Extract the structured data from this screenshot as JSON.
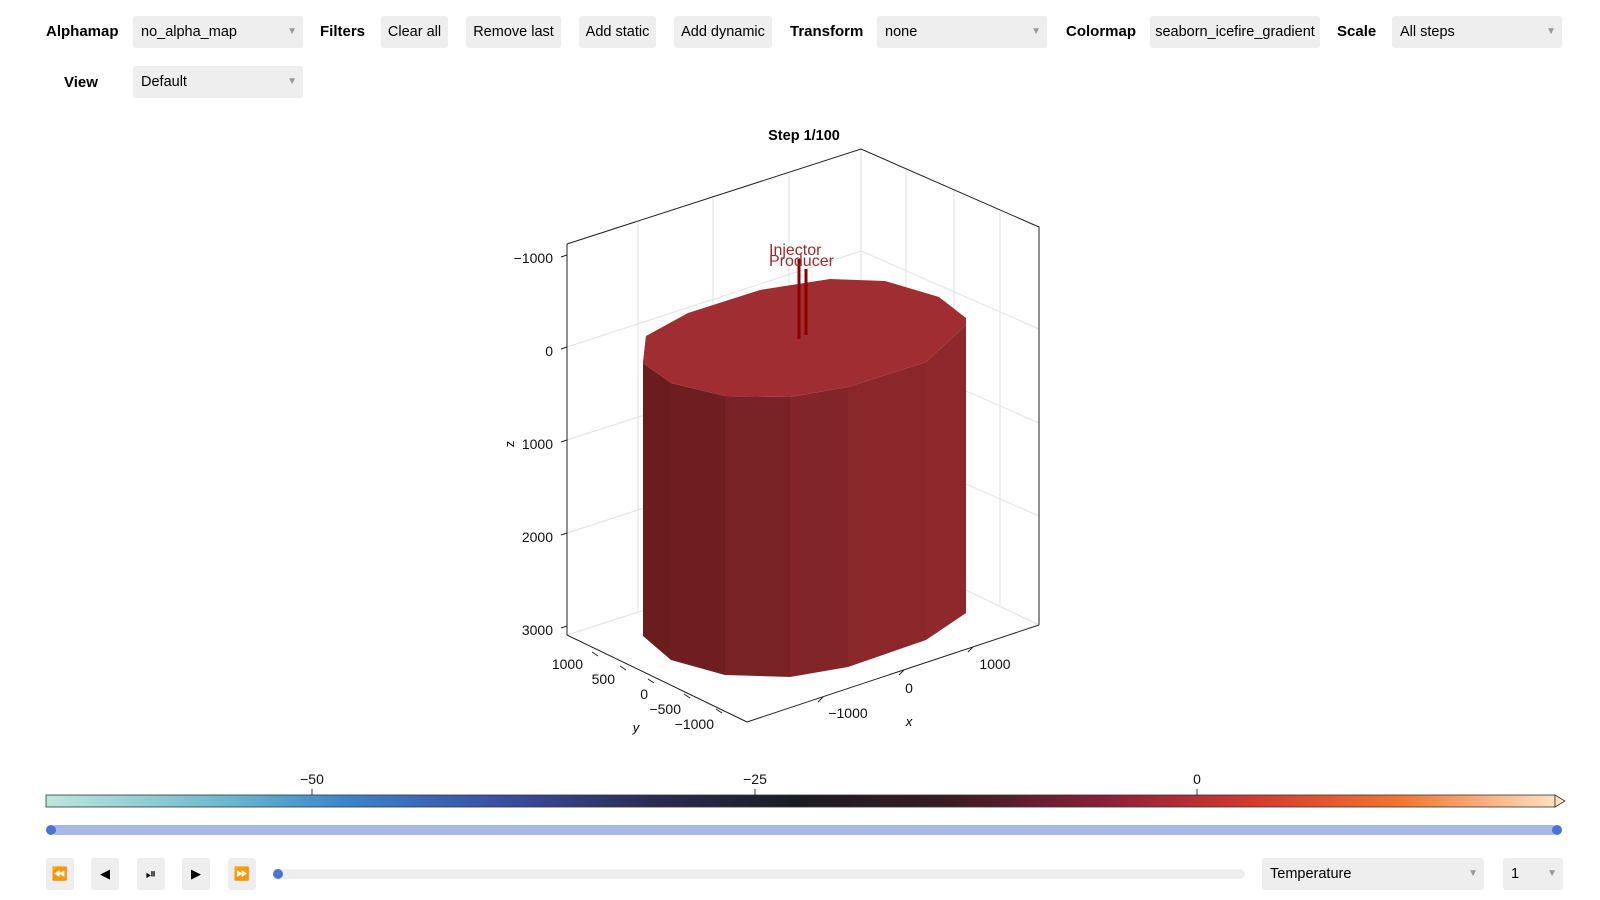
{
  "toolbar": {
    "alphamap_label": "Alphamap",
    "alphamap_value": "no_alpha_map",
    "filters_label": "Filters",
    "clear_all": "Clear all",
    "remove_last": "Remove last",
    "add_static": "Add static",
    "add_dynamic": "Add dynamic",
    "transform_label": "Transform",
    "transform_value": "none",
    "colormap_label": "Colormap",
    "colormap_value": "seaborn_icefire_gradient",
    "scale_label": "Scale",
    "scale_value": "All steps",
    "view_label": "View",
    "view_value": "Default"
  },
  "plot": {
    "title": "Step 1/100",
    "z_label": "z",
    "y_label": "y",
    "x_label": "x",
    "z_ticks": [
      "−1000",
      "0",
      "1000",
      "2000",
      "3000"
    ],
    "y_ticks": [
      "1000",
      "500",
      "0",
      "−500",
      "−1000"
    ],
    "x_ticks": [
      "−1000",
      "0",
      "1000"
    ],
    "wells": [
      "Injector",
      "Producer"
    ],
    "well_color": "#8b0000"
  },
  "colorbar": {
    "ticks": [
      "−50",
      "−25",
      "0"
    ]
  },
  "playback": {
    "rewind_icon": "⏪",
    "back_icon": "◀",
    "playpause_icon": "⏯",
    "play_icon": "▶",
    "forward_icon": "⏩",
    "step_fraction": 0.0,
    "range_fraction": [
      0.0,
      1.0
    ],
    "variable": "Temperature",
    "component": "1"
  }
}
